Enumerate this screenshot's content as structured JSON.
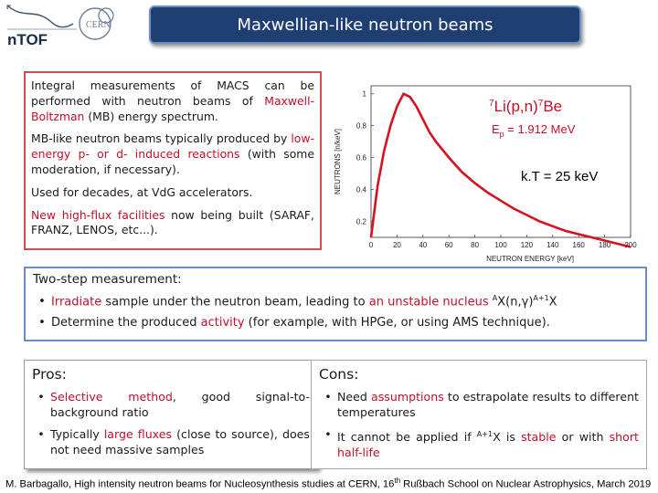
{
  "header": {
    "title": "Maxwellian-like neutron beams",
    "logo_ntof": "nTOF",
    "logo_cern": "CERN"
  },
  "intro": {
    "p1_pre": "Integral measurements of MACS can be performed with neutron beams of ",
    "p1_red1": "Maxwell-Boltzman",
    "p1_post": " (MB) energy spectrum.",
    "p2_pre": "MB-like neutron beams typically produced by ",
    "p2_red1": "low-energy p- or d- induced reactions",
    "p2_post": " (with some moderation, if necessary).",
    "p3": "Used for decades, at VdG accelerators.",
    "p4_red": "New high-flux facilities",
    "p4_post": " now being built (SARAF, FRANZ, LENOS, etc...)."
  },
  "plot": {
    "reaction_pre": "7",
    "reaction_mid": "Li(p,n)",
    "reaction_sup2": "7",
    "reaction_end": "Be",
    "ep_label": "E",
    "ep_sub": "p",
    "ep_value": " = 1.912 MeV",
    "kt_label": "k.T = 25 keV",
    "curve_color": "#d6121e",
    "chart_data": {
      "type": "line",
      "xlabel": "NEUTRON ENERGY [keV]",
      "ylabel": "NEUTRONS [n/keV]",
      "xlim": [
        0,
        200
      ],
      "ylim": [
        0.1,
        1.05
      ],
      "x_ticks": [
        "0",
        "20",
        "40",
        "60",
        "80",
        "100",
        "120",
        "140",
        "160",
        "180",
        "200"
      ],
      "y_ticks": [
        "0.2",
        "0.4",
        "0.6",
        "0.8",
        "1"
      ],
      "grid": false,
      "x": [
        0,
        5,
        10,
        15,
        20,
        25,
        30,
        35,
        40,
        45,
        50,
        60,
        70,
        80,
        90,
        100,
        110,
        120,
        130,
        140,
        150,
        160,
        170,
        180,
        190,
        200
      ],
      "y": [
        0.1,
        0.42,
        0.64,
        0.8,
        0.92,
        1.0,
        0.98,
        0.92,
        0.84,
        0.76,
        0.7,
        0.6,
        0.51,
        0.44,
        0.38,
        0.33,
        0.28,
        0.24,
        0.2,
        0.17,
        0.14,
        0.12,
        0.1,
        0.08,
        0.06,
        0.04
      ]
    }
  },
  "twostep": {
    "heading": "Two-step measurement:",
    "b1_red1": "Irradiate",
    "b1_mid": " sample under the neutron beam, leading to ",
    "b1_red2": "an unstable nucleus",
    "b1_sp": " ",
    "b1_sup1": "A",
    "b1_mid2": "X(n,γ)",
    "b1_sup2": "A+1",
    "b1_end": "X",
    "b2_pre": "Determine the produced ",
    "b2_red": "activity",
    "b2_post": " (for example, with HPGe, or using AMS technique)."
  },
  "pros": {
    "heading": "Pros:",
    "i1_red": "Selective method",
    "i1_post": ", good signal-to-background ratio",
    "i2_pre": "Typically ",
    "i2_red": "large fluxes",
    "i2_post": " (close to source), does not need massive samples"
  },
  "cons": {
    "heading": "Cons:",
    "i1_pre": "Need ",
    "i1_red": "assumptions",
    "i1_post": " to estrapolate results to different temperatures",
    "i2_pre": "It cannot be applied if ",
    "i2_sup": "A+1",
    "i2_mid": "X is ",
    "i2_red1": "stable",
    "i2_mid2": " or with ",
    "i2_red2": "short half-life"
  },
  "footer": {
    "pre": "M. Barbagallo, High intensity neutron beams for Nucleosynthesis studies at CERN, 16",
    "sup": "th",
    "post": " Rußbach School on Nuclear Astrophysics, March 2019"
  },
  "colors": {
    "accent_red": "#c0102a",
    "title_bg": "#1f3f73",
    "twostep_border": "#6d8cc7",
    "intro_border": "#c9514f"
  }
}
